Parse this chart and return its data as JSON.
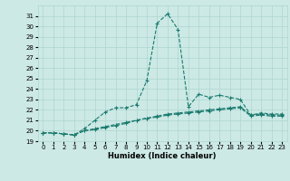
{
  "title": "",
  "xlabel": "Humidex (Indice chaleur)",
  "ylabel": "",
  "bg_color": "#cce9e5",
  "line_color": "#1a7a6e",
  "grid_color": "#add6d0",
  "xlim": [
    -0.5,
    23.5
  ],
  "ylim": [
    19,
    32
  ],
  "yticks": [
    19,
    20,
    21,
    22,
    23,
    24,
    25,
    26,
    27,
    28,
    29,
    30,
    31
  ],
  "xticks": [
    0,
    1,
    2,
    3,
    4,
    5,
    6,
    7,
    8,
    9,
    10,
    11,
    12,
    13,
    14,
    15,
    16,
    17,
    18,
    19,
    20,
    21,
    22,
    23
  ],
  "series": [
    [
      19.8,
      19.8,
      19.7,
      19.6,
      20.2,
      21.0,
      21.8,
      22.2,
      22.2,
      22.5,
      24.8,
      30.3,
      31.2,
      29.7,
      22.3,
      23.5,
      23.2,
      23.4,
      23.2,
      23.0,
      21.5,
      21.7,
      21.6,
      21.6
    ],
    [
      19.8,
      19.8,
      19.7,
      19.6,
      20.0,
      20.2,
      20.4,
      20.6,
      20.8,
      21.0,
      21.2,
      21.4,
      21.6,
      21.7,
      21.8,
      21.9,
      22.0,
      22.1,
      22.2,
      22.3,
      21.5,
      21.6,
      21.5,
      21.5
    ],
    [
      19.8,
      19.8,
      19.7,
      19.6,
      20.0,
      20.1,
      20.3,
      20.5,
      20.7,
      21.0,
      21.2,
      21.3,
      21.5,
      21.6,
      21.7,
      21.8,
      21.9,
      22.0,
      22.1,
      22.2,
      21.4,
      21.5,
      21.4,
      21.4
    ]
  ]
}
